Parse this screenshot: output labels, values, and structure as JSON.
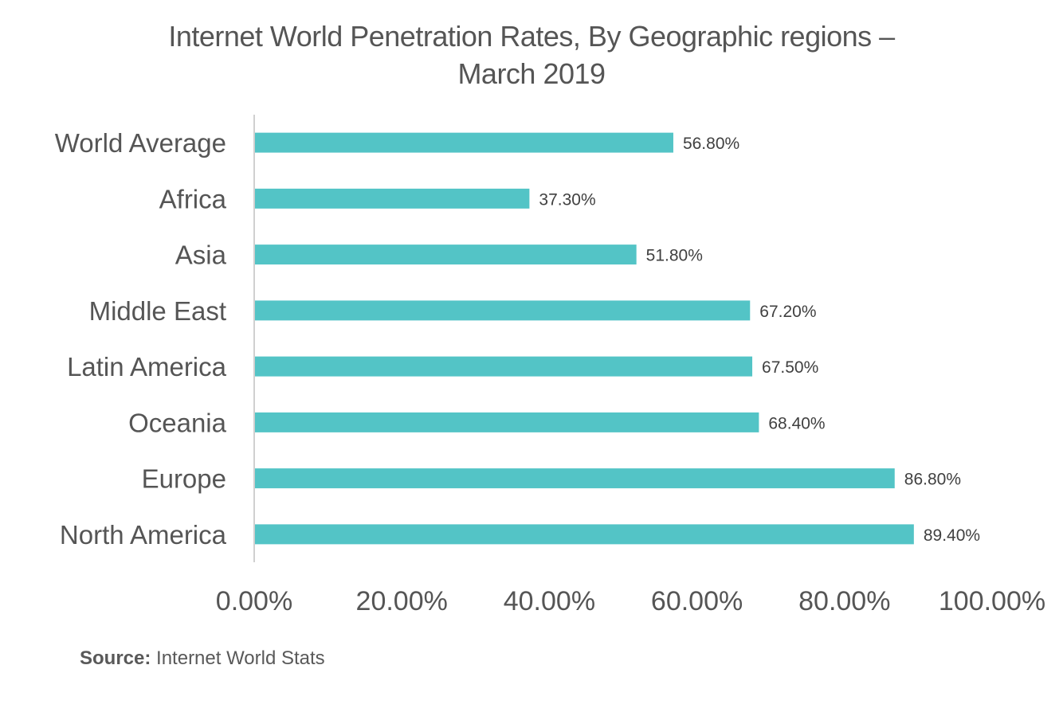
{
  "chart_data": {
    "type": "bar",
    "orientation": "horizontal",
    "title_lines": [
      "Internet World Penetration Rates, By Geographic regions –",
      "March 2019"
    ],
    "categories": [
      "World Average",
      "Africa",
      "Asia",
      "Middle East",
      "Latin America",
      "Oceania",
      "Europe",
      "North America"
    ],
    "values": [
      56.8,
      37.3,
      51.8,
      67.2,
      67.5,
      68.4,
      86.8,
      89.4
    ],
    "data_labels": [
      "56.80%",
      "37.30%",
      "51.80%",
      "67.20%",
      "67.50%",
      "68.40%",
      "86.80%",
      "89.40%"
    ],
    "x_ticks": [
      0,
      20,
      40,
      60,
      80,
      100
    ],
    "x_tick_labels": [
      "0.00%",
      "20.00%",
      "40.00%",
      "60.00%",
      "80.00%",
      "100.00%"
    ],
    "xlim": [
      0,
      100
    ],
    "grid": false,
    "legend": "none",
    "bar_color": "#53C4C6"
  },
  "source": {
    "label": "Source:",
    "text": "Internet World Stats"
  }
}
